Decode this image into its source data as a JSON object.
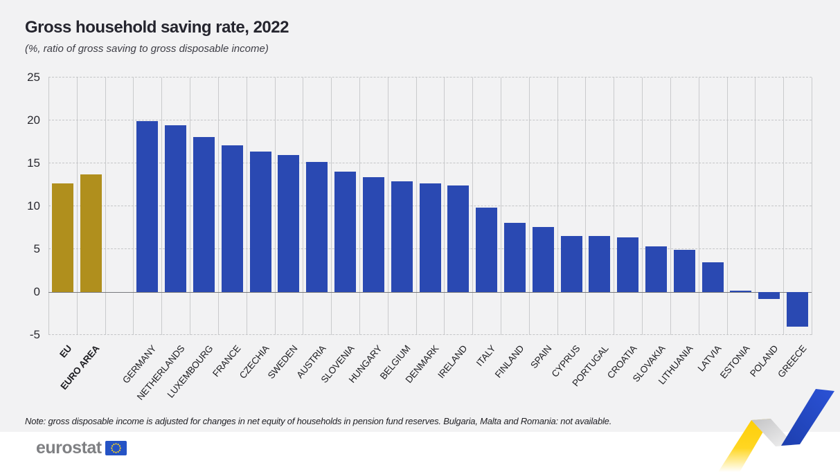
{
  "header": {
    "title": "Gross household saving rate, 2022",
    "subtitle": "(%, ratio of gross saving to gross disposable income)"
  },
  "note": "Note: gross disposable income is adjusted for changes in net equity of households in pension fund reserves. Bulgaria, Malta and Romania: not available.",
  "footer": {
    "brand": "eurostat",
    "flag_icon": "eu-flag-icon"
  },
  "colors": {
    "aggregate_bar": "#b08f1d",
    "country_bar": "#2a49b2",
    "panel_background": "#f2f2f3",
    "zero_line": "#77787c",
    "grid_line": "#c9cacc",
    "ribbon_yellow": "#fdce07",
    "ribbon_blue": "#2447c8",
    "flag_blue": "#2553c5",
    "flag_stars": "#ffd617"
  },
  "chart_data": {
    "type": "bar",
    "title": "Gross household saving rate, 2022",
    "subtitle": "(%, ratio of gross saving to gross disposable income)",
    "xlabel": "",
    "ylabel": "",
    "ylim": [
      -5,
      25
    ],
    "yticks": [
      "25",
      "20",
      "15",
      "10",
      "5",
      "0",
      "-5"
    ],
    "ytick_values": [
      25,
      20,
      15,
      10,
      5,
      0,
      -5
    ],
    "grid": true,
    "legend": false,
    "highlight_count": 2,
    "gap_after_index": 1,
    "categories": [
      "EU",
      "EURO AREA",
      "GERMANY",
      "NETHERLANDS",
      "LUXEMBOURG",
      "FRANCE",
      "CZECHIA",
      "SWEDEN",
      "AUSTRIA",
      "SLOVENIA",
      "HUNGARY",
      "BELGIUM",
      "DENMARK",
      "IRELAND",
      "ITALY",
      "FINLAND",
      "SPAIN",
      "CYPRUS",
      "PORTUGAL",
      "CROATIA",
      "SLOVAKIA",
      "LITHUANIA",
      "LATVIA",
      "ESTONIA",
      "POLAND",
      "GREECE"
    ],
    "values": [
      12.7,
      13.7,
      19.9,
      19.4,
      18.1,
      17.1,
      16.4,
      16.0,
      15.2,
      14.0,
      13.4,
      12.9,
      12.7,
      12.4,
      9.8,
      8.1,
      7.6,
      6.5,
      6.5,
      6.4,
      5.3,
      4.9,
      3.5,
      0.2,
      -0.8,
      -4.0
    ]
  }
}
